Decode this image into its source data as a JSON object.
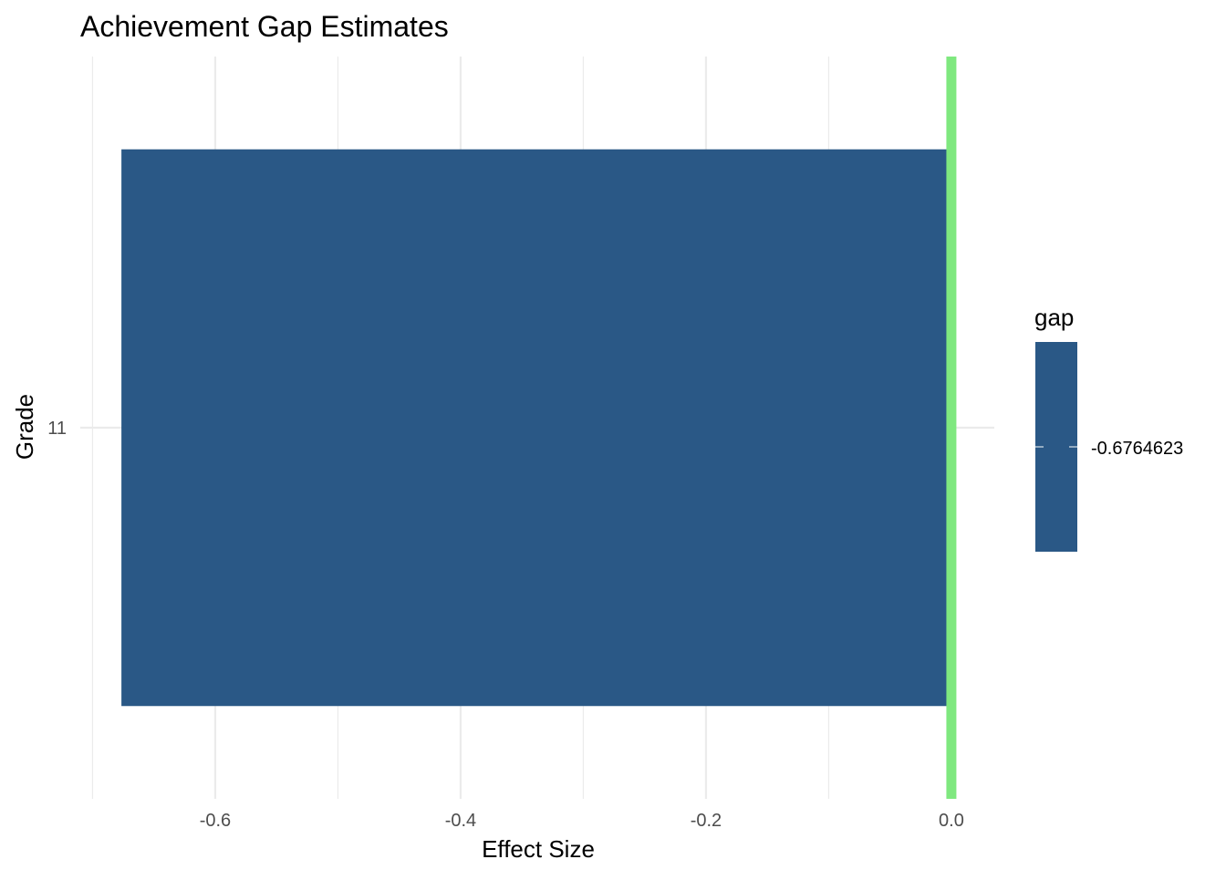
{
  "chart_data": {
    "type": "bar",
    "orientation": "horizontal",
    "title": "Achievement Gap Estimates",
    "xlabel": "Effect Size",
    "ylabel": "Grade",
    "categories": [
      "11"
    ],
    "values": [
      -0.6764623
    ],
    "xlim": [
      -0.71,
      0.035
    ],
    "x_ticks": [
      -0.6,
      -0.4,
      -0.2,
      0.0
    ],
    "x_tick_labels": [
      "-0.6",
      "-0.4",
      "-0.2",
      "0.0"
    ],
    "reference_line": {
      "x": 0,
      "color": "#7FE87F"
    },
    "bar_color": "#2A5886",
    "grid": true,
    "legend": {
      "title": "gap",
      "position": "right",
      "label": "-0.6764623",
      "color": "#2A5886"
    }
  }
}
